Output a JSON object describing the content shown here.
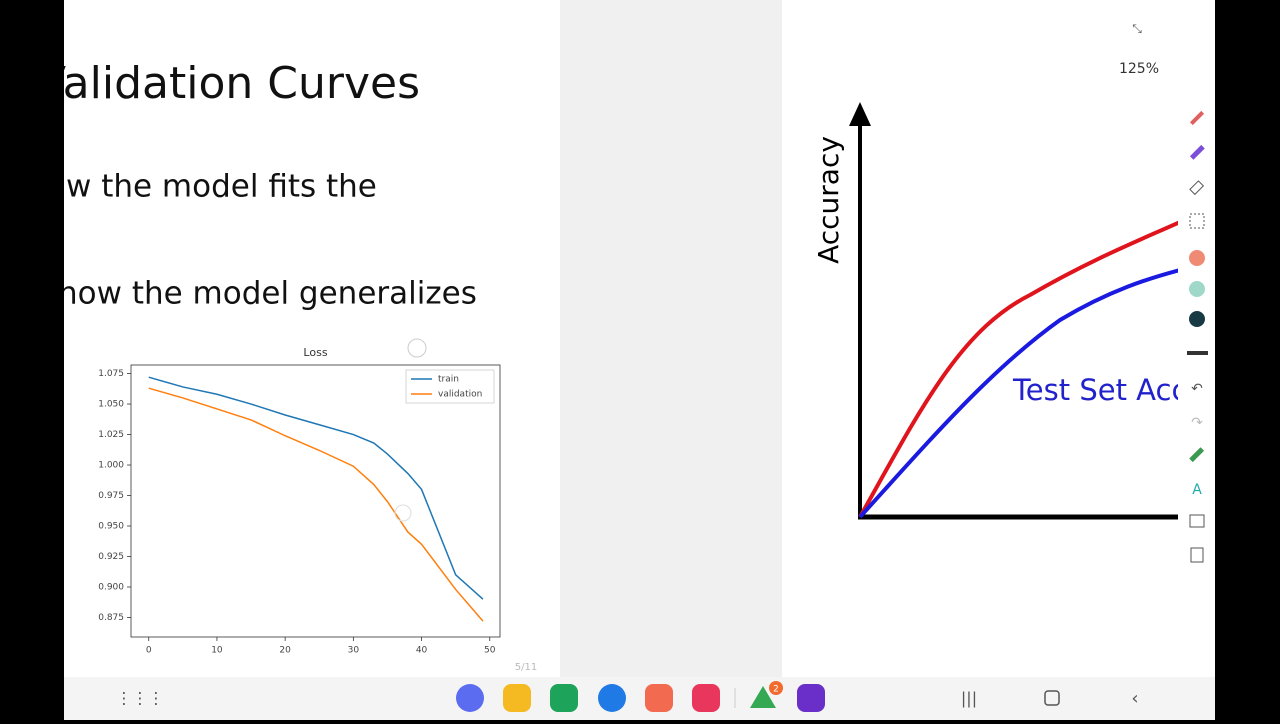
{
  "screen": {
    "slide_title": "Validation Curves",
    "bullet_1": "w the model fits the",
    "bullet_2": "how the model generalizes",
    "page_counter": "5/11",
    "zoom": "125%",
    "right_slide": {
      "y_label": "Accuracy",
      "curve_label": "Test Set Acc"
    },
    "badge": "2"
  },
  "chart_data": {
    "type": "line",
    "title": "Loss",
    "x": [
      0,
      5,
      10,
      15,
      20,
      25,
      30,
      33,
      35,
      38,
      40,
      45,
      49
    ],
    "series": [
      {
        "name": "train",
        "color": "#1f77b4",
        "values": [
          1.072,
          1.064,
          1.058,
          1.05,
          1.041,
          1.033,
          1.025,
          1.018,
          1.009,
          0.993,
          0.98,
          0.91,
          0.89
        ]
      },
      {
        "name": "validation",
        "color": "#ff7f0e",
        "values": [
          1.063,
          1.055,
          1.046,
          1.037,
          1.024,
          1.012,
          0.999,
          0.984,
          0.97,
          0.945,
          0.935,
          0.898,
          0.872
        ]
      }
    ],
    "xlim": [
      -2.6,
      51.5
    ],
    "ylim": [
      0.859,
      1.082
    ],
    "xticks": [
      0,
      10,
      20,
      30,
      40,
      50
    ],
    "yticks": [
      {
        "value": 0.875,
        "label": "0.875"
      },
      {
        "value": 0.9,
        "label": "0.900"
      },
      {
        "value": 0.925,
        "label": "0.925"
      },
      {
        "value": 0.95,
        "label": "0.950"
      },
      {
        "value": 0.975,
        "label": "0.975"
      },
      {
        "value": 1,
        "label": "1.000"
      },
      {
        "value": 1.025,
        "label": "1.025"
      },
      {
        "value": 1.05,
        "label": "1.050"
      },
      {
        "value": 1.075,
        "label": "1.075"
      }
    ],
    "legend": "upper right"
  }
}
